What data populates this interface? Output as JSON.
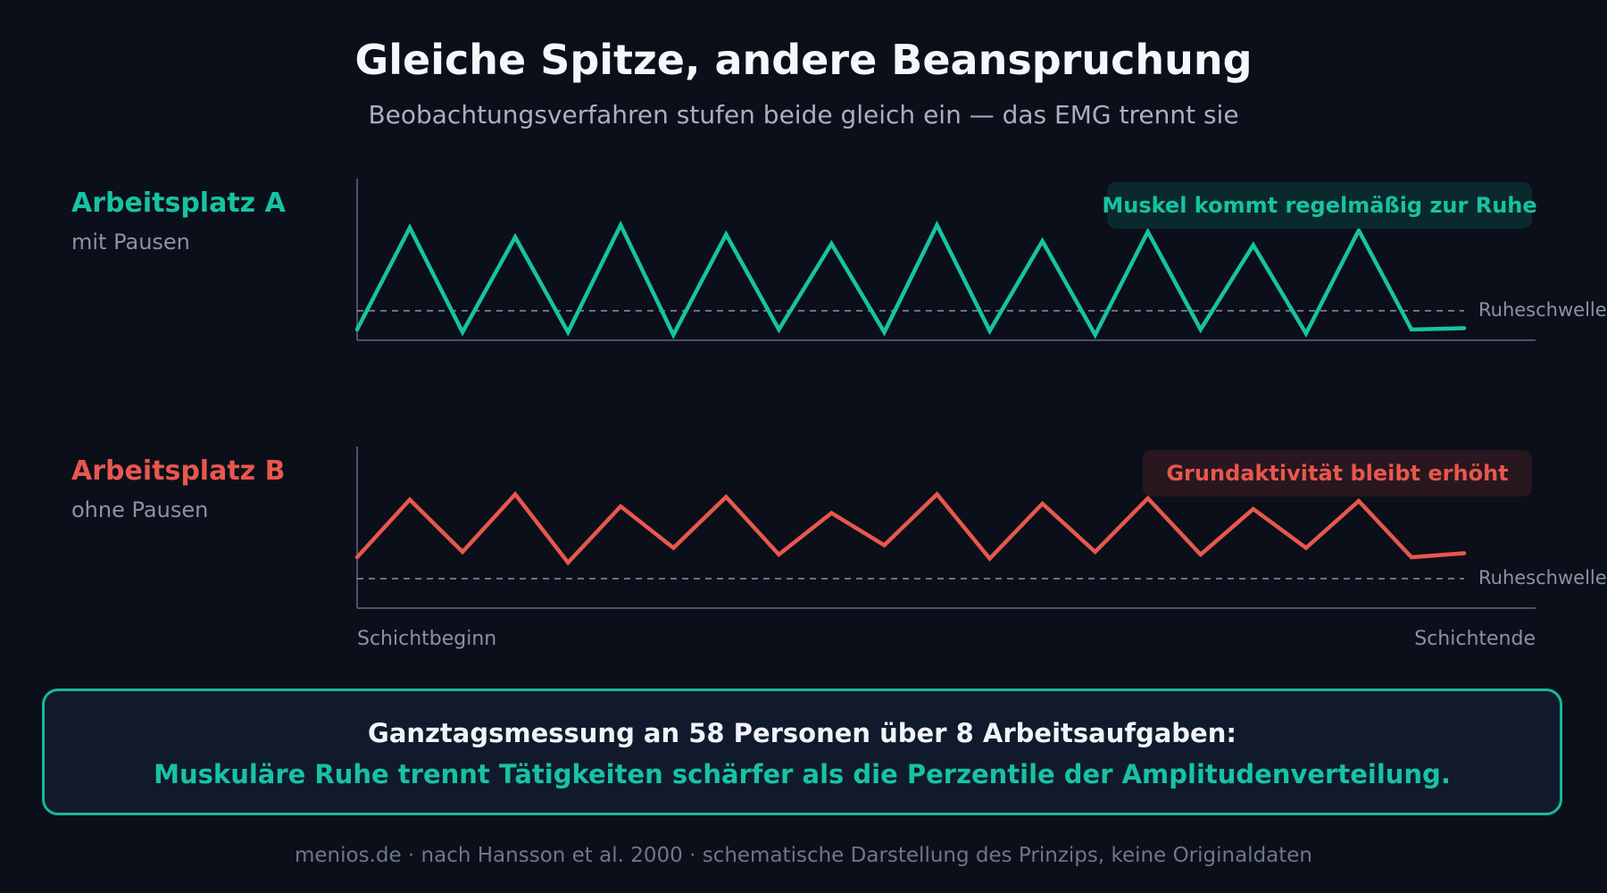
{
  "header": {
    "title": "Gleiche Spitze, andere Beanspruchung",
    "subtitle": "Beobachtungsverfahren stufen beide gleich ein — das EMG trennt sie"
  },
  "colors": {
    "a": "#17c3a1",
    "b": "#e8574d",
    "a_badge_bg": "#0b2b2f",
    "b_badge_bg": "#2b1820",
    "threshold": "#8a92a3",
    "axis": "#4a5263"
  },
  "chart_data": [
    {
      "type": "line",
      "label": "Arbeitsplatz A",
      "sublabel": "mit Pausen",
      "annotation": "Muskel kommt regelmäßig zur Ruhe",
      "threshold_label": "Ruheschwelle",
      "threshold": 0.18,
      "ylim": [
        0,
        1
      ],
      "values": [
        0.04,
        0.8,
        0.02,
        0.73,
        0.02,
        0.82,
        0.0,
        0.75,
        0.04,
        0.68,
        0.02,
        0.82,
        0.03,
        0.7,
        0.0,
        0.77,
        0.04,
        0.67,
        0.01,
        0.78,
        0.04,
        0.05
      ]
    },
    {
      "type": "line",
      "label": "Arbeitsplatz B",
      "sublabel": "ohne Pausen",
      "annotation": "Grundaktivität bleibt erhöht",
      "threshold_label": "Ruheschwelle",
      "threshold": 0.18,
      "ylim": [
        0,
        1
      ],
      "values": [
        0.34,
        0.77,
        0.38,
        0.81,
        0.3,
        0.72,
        0.41,
        0.79,
        0.36,
        0.67,
        0.43,
        0.81,
        0.33,
        0.74,
        0.38,
        0.78,
        0.36,
        0.7,
        0.41,
        0.76,
        0.34,
        0.37
      ]
    }
  ],
  "xaxis": {
    "start_label": "Schichtbeginn",
    "end_label": "Schichtende"
  },
  "info": {
    "line1": "Ganztagsmessung an 58 Personen über 8 Arbeitsaufgaben:",
    "line2": "Muskuläre Ruhe trennt Tätigkeiten schärfer als die Perzentile der Amplitudenverteilung."
  },
  "footer": "menios.de · nach Hansson et al. 2000 · schematische Darstellung des Prinzips, keine Originaldaten"
}
